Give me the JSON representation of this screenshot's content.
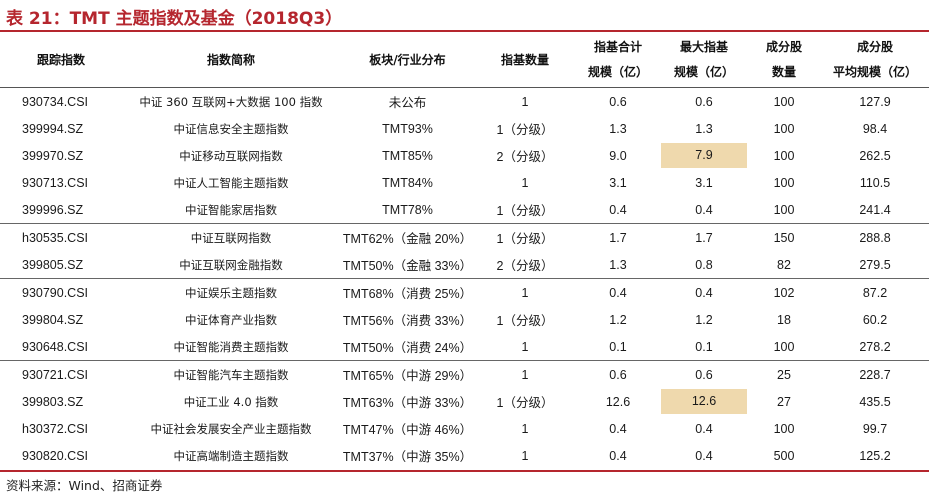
{
  "title": "表 21：TMT 主题指数及基金（2018Q3）",
  "header": {
    "code": "跟踪指数",
    "name": "指数简称",
    "sector": "板块/行业分布",
    "fund_count": "指基数量",
    "total_size_1": "指基合计",
    "total_size_2": "规模（亿）",
    "max_size_1": "最大指基",
    "max_size_2": "规模（亿）",
    "constituent_1": "成分股",
    "constituent_2": "数量",
    "avg_cap_1": "成分股",
    "avg_cap_2": "平均规模（亿）"
  },
  "rows": [
    {
      "code": "930734.CSI",
      "name": "中证 360 互联网+大数据 100 指数",
      "sector": "未公布",
      "funds": "1",
      "total": "0.6",
      "max": "0.6",
      "count": "100",
      "avg": "127.9"
    },
    {
      "code": "399994.SZ",
      "name": "中证信息安全主题指数",
      "sector": "TMT93%",
      "funds": "1（分级）",
      "total": "1.3",
      "max": "1.3",
      "count": "100",
      "avg": "98.4"
    },
    {
      "code": "399970.SZ",
      "name": "中证移动互联网指数",
      "sector": "TMT85%",
      "funds": "2（分级）",
      "total": "9.0",
      "max": "7.9",
      "count": "100",
      "avg": "262.5"
    },
    {
      "code": "930713.CSI",
      "name": "中证人工智能主题指数",
      "sector": "TMT84%",
      "funds": "1",
      "total": "3.1",
      "max": "3.1",
      "count": "100",
      "avg": "110.5"
    },
    {
      "code": "399996.SZ",
      "name": "中证智能家居指数",
      "sector": "TMT78%",
      "funds": "1（分级）",
      "total": "0.4",
      "max": "0.4",
      "count": "100",
      "avg": "241.4"
    },
    {
      "code": "h30535.CSI",
      "name": "中证互联网指数",
      "sector": "TMT62%（金融 20%）",
      "funds": "1（分级）",
      "total": "1.7",
      "max": "1.7",
      "count": "150",
      "avg": "288.8"
    },
    {
      "code": "399805.SZ",
      "name": "中证互联网金融指数",
      "sector": "TMT50%（金融 33%）",
      "funds": "2（分级）",
      "total": "1.3",
      "max": "0.8",
      "count": "82",
      "avg": "279.5"
    },
    {
      "code": "930790.CSI",
      "name": "中证娱乐主题指数",
      "sector": "TMT68%（消费 25%）",
      "funds": "1",
      "total": "0.4",
      "max": "0.4",
      "count": "102",
      "avg": "87.2"
    },
    {
      "code": "399804.SZ",
      "name": "中证体育产业指数",
      "sector": "TMT56%（消费 33%）",
      "funds": "1（分级）",
      "total": "1.2",
      "max": "1.2",
      "count": "18",
      "avg": "60.2"
    },
    {
      "code": "930648.CSI",
      "name": "中证智能消费主题指数",
      "sector": "TMT50%（消费 24%）",
      "funds": "1",
      "total": "0.1",
      "max": "0.1",
      "count": "100",
      "avg": "278.2"
    },
    {
      "code": "930721.CSI",
      "name": "中证智能汽车主题指数",
      "sector": "TMT65%（中游 29%）",
      "funds": "1",
      "total": "0.6",
      "max": "0.6",
      "count": "25",
      "avg": "228.7"
    },
    {
      "code": "399803.SZ",
      "name": "中证工业 4.0 指数",
      "sector": "TMT63%（中游 33%）",
      "funds": "1（分级）",
      "total": "12.6",
      "max": "12.6",
      "count": "27",
      "avg": "435.5"
    },
    {
      "code": "h30372.CSI",
      "name": "中证社会发展安全产业主题指数",
      "sector": "TMT47%（中游 46%）",
      "funds": "1",
      "total": "0.4",
      "max": "0.4",
      "count": "100",
      "avg": "99.7"
    },
    {
      "code": "930820.CSI",
      "name": "中证高端制造主题指数",
      "sector": "TMT37%（中游 35%）",
      "funds": "1",
      "total": "0.4",
      "max": "0.4",
      "count": "500",
      "avg": "125.2"
    }
  ],
  "highlight_color": "#efd9ad",
  "accent_color": "#b5262e",
  "source": "资料来源：Wind、招商证券"
}
